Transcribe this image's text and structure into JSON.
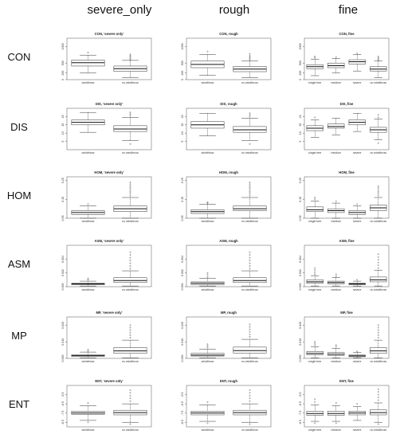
{
  "column_headers": [
    "severe_only",
    "rough",
    "fine"
  ],
  "row_headers": [
    "CON",
    "DIS",
    "HOM",
    "ASM",
    "MP",
    "ENT"
  ],
  "chart_data": [
    {
      "type": "box",
      "row": "CON",
      "col": "severe_only",
      "title": "CON, 'severe only'",
      "ylim": [
        0,
        1250
      ],
      "yticks": [
        "0",
        "200",
        "500",
        "1000"
      ],
      "series": [
        {
          "name": "windthrow",
          "whislo": 200,
          "q1": 410,
          "med": 510,
          "q3": 590,
          "whishi": 740,
          "fliers": [
            820
          ]
        },
        {
          "name": "no windthrow",
          "whislo": 60,
          "q1": 250,
          "med": 330,
          "q3": 410,
          "whishi": 580,
          "fliers": [
            610,
            650,
            690,
            720,
            760
          ]
        }
      ]
    },
    {
      "type": "box",
      "row": "CON",
      "col": "rough",
      "title": "CON, rough",
      "ylim": [
        0,
        1250
      ],
      "yticks": [
        "0",
        "200",
        "500",
        "1000"
      ],
      "series": [
        {
          "name": "windthrow",
          "whislo": 130,
          "q1": 360,
          "med": 460,
          "q3": 560,
          "whishi": 760,
          "fliers": [
            850
          ]
        },
        {
          "name": "no windthrow",
          "whislo": 60,
          "q1": 240,
          "med": 320,
          "q3": 400,
          "whishi": 570,
          "fliers": [
            600,
            640,
            680,
            720,
            780
          ]
        }
      ]
    },
    {
      "type": "box",
      "row": "CON",
      "col": "fine",
      "title": "CON, fine",
      "ylim": [
        0,
        1250
      ],
      "yticks": [
        "0",
        "200",
        "500",
        "1000"
      ],
      "series": [
        {
          "name": "single tree",
          "whislo": 120,
          "q1": 330,
          "med": 390,
          "q3": 450,
          "whishi": 620,
          "fliers": [
            660,
            700
          ]
        },
        {
          "name": "medium",
          "whislo": 200,
          "q1": 360,
          "med": 420,
          "q3": 500,
          "whishi": 640,
          "fliers": [
            680
          ]
        },
        {
          "name": "severe",
          "whislo": 260,
          "q1": 470,
          "med": 540,
          "q3": 600,
          "whishi": 760,
          "fliers": [
            800
          ]
        },
        {
          "name": "no windthrow",
          "whislo": 60,
          "q1": 260,
          "med": 320,
          "q3": 390,
          "whishi": 560,
          "fliers": [
            590,
            620,
            660,
            700
          ]
        }
      ]
    },
    {
      "type": "box",
      "row": "DIS",
      "col": "severe_only",
      "title": "DIS, 'severe only'",
      "ylim": [
        0,
        25
      ],
      "yticks": [
        "5",
        "10",
        "15",
        "20"
      ],
      "series": [
        {
          "name": "windthrow",
          "whislo": 10.5,
          "q1": 15.0,
          "med": 16.5,
          "q3": 18.0,
          "whishi": 22.5,
          "fliers": []
        },
        {
          "name": "no windthrow",
          "whislo": 5.5,
          "q1": 11.0,
          "med": 12.5,
          "q3": 14.5,
          "whishi": 19.5,
          "fliers": [
            3.5,
            20.5,
            21.5,
            22.5
          ]
        }
      ]
    },
    {
      "type": "box",
      "row": "DIS",
      "col": "rough",
      "title": "DIS, rough",
      "ylim": [
        0,
        25
      ],
      "yticks": [
        "5",
        "10",
        "15",
        "20"
      ],
      "series": [
        {
          "name": "windthrow",
          "whislo": 8.5,
          "q1": 13.0,
          "med": 15.0,
          "q3": 17.0,
          "whishi": 22.0,
          "fliers": []
        },
        {
          "name": "no windthrow",
          "whislo": 5.5,
          "q1": 10.5,
          "med": 12.0,
          "q3": 14.0,
          "whishi": 19.0,
          "fliers": [
            3.5,
            20.0,
            21.0,
            22.0
          ]
        }
      ]
    },
    {
      "type": "box",
      "row": "DIS",
      "col": "fine",
      "title": "DIS, fine",
      "ylim": [
        0,
        25
      ],
      "yticks": [
        "5",
        "10",
        "15",
        "20"
      ],
      "series": [
        {
          "name": "single tree",
          "whislo": 7.5,
          "q1": 11.5,
          "med": 13.0,
          "q3": 14.5,
          "whishi": 18.0,
          "fliers": [
            19.5
          ]
        },
        {
          "name": "medium",
          "whislo": 9.0,
          "q1": 13.0,
          "med": 14.0,
          "q3": 15.5,
          "whishi": 19.0,
          "fliers": []
        },
        {
          "name": "severe",
          "whislo": 11.0,
          "q1": 15.0,
          "med": 16.5,
          "q3": 18.0,
          "whishi": 22.0,
          "fliers": []
        },
        {
          "name": "no windthrow",
          "whislo": 6.0,
          "q1": 10.5,
          "med": 12.0,
          "q3": 13.5,
          "whishi": 18.5,
          "fliers": [
            4.0,
            19.5,
            21.0
          ]
        }
      ]
    },
    {
      "type": "box",
      "row": "HOM",
      "col": "severe_only",
      "title": "HOM, 'severe only'",
      "ylim": [
        0.05,
        0.27
      ],
      "yticks": [
        "0.05",
        "0.15",
        "0.25"
      ],
      "series": [
        {
          "name": "windthrow",
          "whislo": 0.05,
          "q1": 0.07,
          "med": 0.08,
          "q3": 0.09,
          "whishi": 0.115,
          "fliers": [
            0.125
          ]
        },
        {
          "name": "no windthrow",
          "whislo": 0.05,
          "q1": 0.085,
          "med": 0.1,
          "q3": 0.115,
          "whishi": 0.16,
          "fliers": [
            0.17,
            0.18,
            0.19,
            0.2,
            0.21,
            0.22,
            0.23,
            0.24
          ]
        }
      ]
    },
    {
      "type": "box",
      "row": "HOM",
      "col": "rough",
      "title": "HOM, rough",
      "ylim": [
        0.05,
        0.27
      ],
      "yticks": [
        "0.05",
        "0.15",
        "0.25"
      ],
      "series": [
        {
          "name": "windthrow",
          "whislo": 0.05,
          "q1": 0.075,
          "med": 0.085,
          "q3": 0.095,
          "whishi": 0.125,
          "fliers": [
            0.13,
            0.135
          ]
        },
        {
          "name": "no windthrow",
          "whislo": 0.05,
          "q1": 0.09,
          "med": 0.1,
          "q3": 0.115,
          "whishi": 0.16,
          "fliers": [
            0.17,
            0.18,
            0.19,
            0.2,
            0.21,
            0.22,
            0.23,
            0.24
          ]
        }
      ]
    },
    {
      "type": "box",
      "row": "HOM",
      "col": "fine",
      "title": "HOM, fine",
      "ylim": [
        0.05,
        0.27
      ],
      "yticks": [
        "0.05",
        "0.15",
        "0.25"
      ],
      "series": [
        {
          "name": "single tree",
          "whislo": 0.05,
          "q1": 0.085,
          "med": 0.095,
          "q3": 0.11,
          "whishi": 0.14,
          "fliers": [
            0.15,
            0.16
          ]
        },
        {
          "name": "medium",
          "whislo": 0.05,
          "q1": 0.08,
          "med": 0.09,
          "q3": 0.1,
          "whishi": 0.13,
          "fliers": [
            0.14
          ]
        },
        {
          "name": "severe",
          "whislo": 0.05,
          "q1": 0.07,
          "med": 0.08,
          "q3": 0.09,
          "whishi": 0.115,
          "fliers": [
            0.125
          ]
        },
        {
          "name": "no windthrow",
          "whislo": 0.05,
          "q1": 0.09,
          "med": 0.105,
          "q3": 0.12,
          "whishi": 0.16,
          "fliers": [
            0.17,
            0.18,
            0.19,
            0.2,
            0.21,
            0.22
          ]
        }
      ]
    },
    {
      "type": "box",
      "row": "ASM",
      "col": "severe_only",
      "title": "ASM, 'severe only'",
      "ylim": [
        0,
        0.006
      ],
      "yticks": [
        "0.000",
        "0.002",
        "0.004"
      ],
      "series": [
        {
          "name": "windthrow",
          "whislo": 0.0001,
          "q1": 0.0003,
          "med": 0.0004,
          "q3": 0.0005,
          "whishi": 0.0008,
          "fliers": [
            0.001,
            0.0012
          ]
        },
        {
          "name": "no windthrow",
          "whislo": 0.0001,
          "q1": 0.0006,
          "med": 0.0009,
          "q3": 0.0013,
          "whishi": 0.0023,
          "fliers": [
            0.0026,
            0.003,
            0.0034,
            0.0038,
            0.0042,
            0.0046,
            0.005
          ]
        }
      ]
    },
    {
      "type": "box",
      "row": "ASM",
      "col": "rough",
      "title": "ASM, rough",
      "ylim": [
        0,
        0.006
      ],
      "yticks": [
        "0.000",
        "0.002",
        "0.004"
      ],
      "series": [
        {
          "name": "windthrow",
          "whislo": 0.0001,
          "q1": 0.0003,
          "med": 0.0005,
          "q3": 0.0007,
          "whishi": 0.0012,
          "fliers": [
            0.0014,
            0.0017,
            0.002
          ]
        },
        {
          "name": "no windthrow",
          "whislo": 0.0001,
          "q1": 0.0006,
          "med": 0.0009,
          "q3": 0.0013,
          "whishi": 0.0023,
          "fliers": [
            0.0026,
            0.003,
            0.0034,
            0.0038,
            0.0042,
            0.0046,
            0.005
          ]
        }
      ]
    },
    {
      "type": "box",
      "row": "ASM",
      "col": "fine",
      "title": "ASM, fine",
      "ylim": [
        0,
        0.006
      ],
      "yticks": [
        "0.000",
        "0.002",
        "0.004"
      ],
      "series": [
        {
          "name": "single tree",
          "whislo": 0.0001,
          "q1": 0.0005,
          "med": 0.0007,
          "q3": 0.001,
          "whishi": 0.0016,
          "fliers": [
            0.0018,
            0.0021,
            0.0024,
            0.0027
          ]
        },
        {
          "name": "medium",
          "whislo": 0.0001,
          "q1": 0.0004,
          "med": 0.0006,
          "q3": 0.0008,
          "whishi": 0.0013,
          "fliers": [
            0.0015,
            0.0018
          ]
        },
        {
          "name": "severe",
          "whislo": 0.0001,
          "q1": 0.0003,
          "med": 0.0004,
          "q3": 0.0005,
          "whishi": 0.0008,
          "fliers": [
            0.001
          ]
        },
        {
          "name": "no windthrow",
          "whislo": 0.0001,
          "q1": 0.0007,
          "med": 0.001,
          "q3": 0.0014,
          "whishi": 0.0024,
          "fliers": [
            0.0027,
            0.0031,
            0.0035,
            0.0039,
            0.0043,
            0.0047
          ]
        }
      ]
    },
    {
      "type": "box",
      "row": "MP",
      "col": "severe_only",
      "title": "MP, 'severe only'",
      "ylim": [
        0,
        0.025
      ],
      "yticks": [
        "0.000",
        "0.010",
        "0.020"
      ],
      "series": [
        {
          "name": "windthrow",
          "whislo": 0.0003,
          "q1": 0.0012,
          "med": 0.0016,
          "q3": 0.0022,
          "whishi": 0.0038,
          "fliers": [
            0.0045,
            0.0052
          ]
        },
        {
          "name": "no windthrow",
          "whislo": 0.0003,
          "q1": 0.003,
          "med": 0.0045,
          "q3": 0.0065,
          "whishi": 0.011,
          "fliers": [
            0.0125,
            0.014,
            0.0155,
            0.017,
            0.0185,
            0.02
          ]
        }
      ]
    },
    {
      "type": "box",
      "row": "MP",
      "col": "rough",
      "title": "MP, rough",
      "ylim": [
        0,
        0.025
      ],
      "yticks": [
        "0.000",
        "0.010",
        "0.020"
      ],
      "series": [
        {
          "name": "windthrow",
          "whislo": 0.0003,
          "q1": 0.0014,
          "med": 0.002,
          "q3": 0.003,
          "whishi": 0.0055,
          "fliers": [
            0.0065,
            0.0075,
            0.0085
          ]
        },
        {
          "name": "no windthrow",
          "whislo": 0.0003,
          "q1": 0.0032,
          "med": 0.0047,
          "q3": 0.0068,
          "whishi": 0.0115,
          "fliers": [
            0.013,
            0.0145,
            0.016,
            0.0175,
            0.019,
            0.0205
          ]
        }
      ]
    },
    {
      "type": "box",
      "row": "MP",
      "col": "fine",
      "title": "MP, fine",
      "ylim": [
        0,
        0.025
      ],
      "yticks": [
        "0.000",
        "0.010",
        "0.020"
      ],
      "series": [
        {
          "name": "single tree",
          "whislo": 0.0003,
          "q1": 0.0022,
          "med": 0.003,
          "q3": 0.0042,
          "whishi": 0.007,
          "fliers": [
            0.008,
            0.009,
            0.01
          ]
        },
        {
          "name": "medium",
          "whislo": 0.0003,
          "q1": 0.0018,
          "med": 0.0025,
          "q3": 0.0035,
          "whishi": 0.006,
          "fliers": [
            0.007,
            0.008
          ]
        },
        {
          "name": "severe",
          "whislo": 0.0003,
          "q1": 0.001,
          "med": 0.0015,
          "q3": 0.002,
          "whishi": 0.0035,
          "fliers": [
            0.0042
          ]
        },
        {
          "name": "no windthrow",
          "whislo": 0.0003,
          "q1": 0.003,
          "med": 0.0045,
          "q3": 0.0065,
          "whishi": 0.011,
          "fliers": [
            0.0125,
            0.014,
            0.0155,
            0.017,
            0.0185,
            0.02
          ]
        }
      ]
    },
    {
      "type": "box",
      "row": "ENT",
      "col": "severe_only",
      "title": "ENT, 'severe only'",
      "ylim": [
        -9,
        -4.5
      ],
      "yticks": [
        "-8.5",
        "-7.5",
        "-6.5",
        "-5.5"
      ],
      "series": [
        {
          "name": "windthrow",
          "whislo": -8.3,
          "q1": -7.65,
          "med": -7.5,
          "q3": -7.3,
          "whishi": -6.7,
          "fliers": [
            -6.4,
            -8.5
          ]
        },
        {
          "name": "no windthrow",
          "whislo": -8.5,
          "q1": -7.7,
          "med": -7.45,
          "q3": -7.2,
          "whishi": -6.5,
          "fliers": [
            -6.2,
            -5.9,
            -5.6,
            -5.3,
            -5.0,
            -8.7
          ]
        }
      ]
    },
    {
      "type": "box",
      "row": "ENT",
      "col": "rough",
      "title": "ENT, rough",
      "ylim": [
        -9,
        -4.5
      ],
      "yticks": [
        "-8.5",
        "-7.5",
        "-6.5",
        "-5.5"
      ],
      "series": [
        {
          "name": "windthrow",
          "whislo": -8.4,
          "q1": -7.7,
          "med": -7.5,
          "q3": -7.3,
          "whishi": -6.6,
          "fliers": [
            -6.3,
            -8.6
          ]
        },
        {
          "name": "no windthrow",
          "whislo": -8.5,
          "q1": -7.7,
          "med": -7.45,
          "q3": -7.2,
          "whishi": -6.5,
          "fliers": [
            -6.2,
            -5.9,
            -5.6,
            -5.3,
            -5.0,
            -8.7
          ]
        }
      ]
    },
    {
      "type": "box",
      "row": "ENT",
      "col": "fine",
      "title": "ENT, fine",
      "ylim": [
        -9,
        -4.5
      ],
      "yticks": [
        "-8.5",
        "-7.5",
        "-6.5",
        "-5.5"
      ],
      "series": [
        {
          "name": "single tree",
          "whislo": -8.4,
          "q1": -7.75,
          "med": -7.55,
          "q3": -7.3,
          "whishi": -6.6,
          "fliers": [
            -6.3,
            -6.0,
            -8.6
          ]
        },
        {
          "name": "medium",
          "whislo": -8.4,
          "q1": -7.75,
          "med": -7.55,
          "q3": -7.3,
          "whishi": -6.7,
          "fliers": [
            -6.4,
            -8.6
          ]
        },
        {
          "name": "severe",
          "whislo": -8.3,
          "q1": -7.7,
          "med": -7.5,
          "q3": -7.3,
          "whishi": -6.8,
          "fliers": [
            -6.5
          ]
        },
        {
          "name": "no windthrow",
          "whislo": -8.5,
          "q1": -7.7,
          "med": -7.45,
          "q3": -7.15,
          "whishi": -6.4,
          "fliers": [
            -6.1,
            -5.8,
            -5.5,
            -5.2,
            -4.9,
            -8.7
          ]
        }
      ]
    }
  ]
}
